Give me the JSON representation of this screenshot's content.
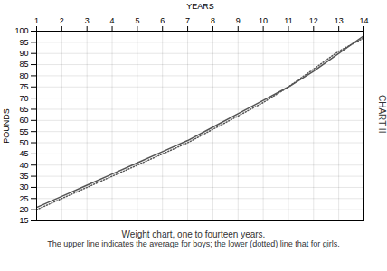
{
  "chart_data": {
    "type": "line",
    "title": "CHART II",
    "xlabel": "YEARS",
    "ylabel": "POUNDS",
    "caption": [
      "Weight chart, one to fourteen years.",
      "The upper line indicates the average for boys; the lower (dotted) line that for girls."
    ],
    "x": [
      1,
      2,
      3,
      4,
      5,
      6,
      7,
      8,
      9,
      10,
      11,
      12,
      13,
      14
    ],
    "series": [
      {
        "color": "#555555",
        "line_style": "solid",
        "values": [
          21,
          26,
          31,
          36,
          41,
          46,
          51,
          57,
          63,
          69,
          75,
          82,
          90,
          98
        ]
      },
      {
        "color": "#555555",
        "line_style": "dotted",
        "values": [
          20,
          25,
          30,
          35,
          40,
          45,
          50,
          56,
          62,
          68,
          75,
          83,
          91,
          97
        ]
      }
    ],
    "xlim": [
      1,
      14
    ],
    "xticks": [
      1,
      2,
      3,
      4,
      5,
      6,
      7,
      8,
      9,
      10,
      11,
      12,
      13,
      14
    ],
    "ylim": [
      15,
      100
    ],
    "yticks": [
      15,
      20,
      25,
      30,
      35,
      40,
      45,
      50,
      55,
      60,
      65,
      70,
      75,
      80,
      85,
      90,
      95,
      100
    ],
    "grid": true
  }
}
